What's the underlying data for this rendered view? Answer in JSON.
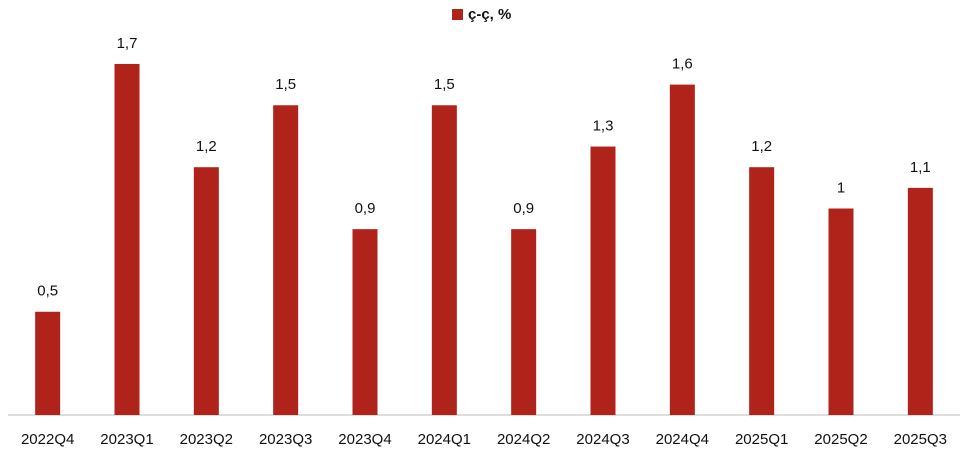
{
  "chart_data": {
    "type": "bar",
    "categories": [
      "2022Q4",
      "2023Q1",
      "2023Q2",
      "2023Q3",
      "2023Q4",
      "2024Q1",
      "2024Q2",
      "2024Q3",
      "2024Q4",
      "2025Q1",
      "2025Q2",
      "2025Q3"
    ],
    "series": [
      {
        "name": "ç-ç, %",
        "color": "#b0231b",
        "values": [
          0.5,
          1.7,
          1.2,
          1.5,
          0.9,
          1.5,
          0.9,
          1.3,
          1.6,
          1.2,
          1,
          1.1
        ],
        "value_labels": [
          "0,5",
          "1,7",
          "1,2",
          "1,5",
          "0,9",
          "1,5",
          "0,9",
          "1,3",
          "1,6",
          "1,2",
          "1",
          "1,1"
        ]
      }
    ],
    "ylim": [
      0,
      2
    ],
    "legend": "top"
  }
}
